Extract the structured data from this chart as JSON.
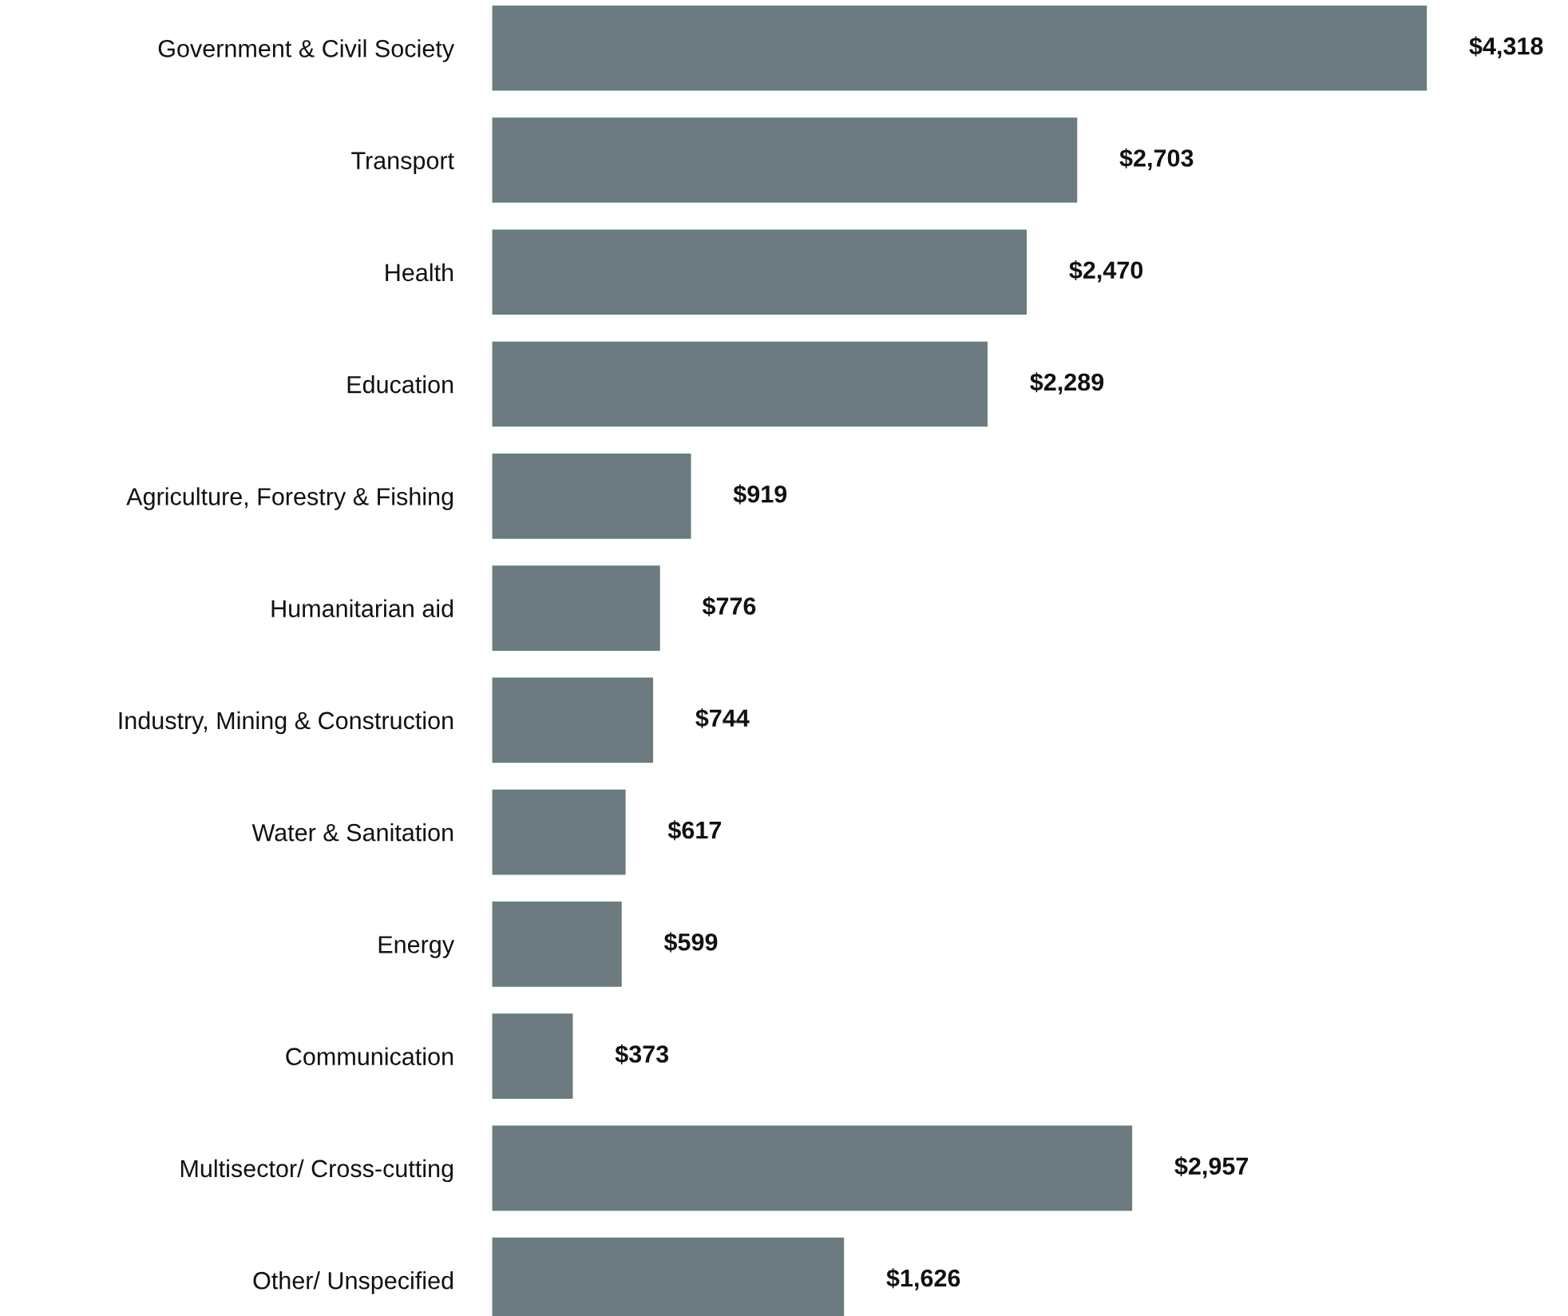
{
  "chart_data": {
    "type": "bar",
    "orientation": "horizontal",
    "categories": [
      "Government & Civil Society",
      "Transport",
      "Health",
      "Education",
      "Agriculture, Forestry & Fishing",
      "Humanitarian aid",
      "Industry, Mining & Construction",
      "Water & Sanitation",
      "Energy",
      "Communication",
      "Multisector/ Cross-cutting",
      "Other/ Unspecified"
    ],
    "values": [
      4318,
      2703,
      2470,
      2289,
      919,
      776,
      744,
      617,
      599,
      373,
      2957,
      1626
    ],
    "value_labels": [
      "$4,318",
      "$2,703",
      "$2,470",
      "$2,289",
      "$919",
      "$776",
      "$744",
      "$617",
      "$599",
      "$373",
      "$2,957",
      "$1,626"
    ],
    "color": "#6b7b80",
    "grid": false,
    "legend": false
  }
}
